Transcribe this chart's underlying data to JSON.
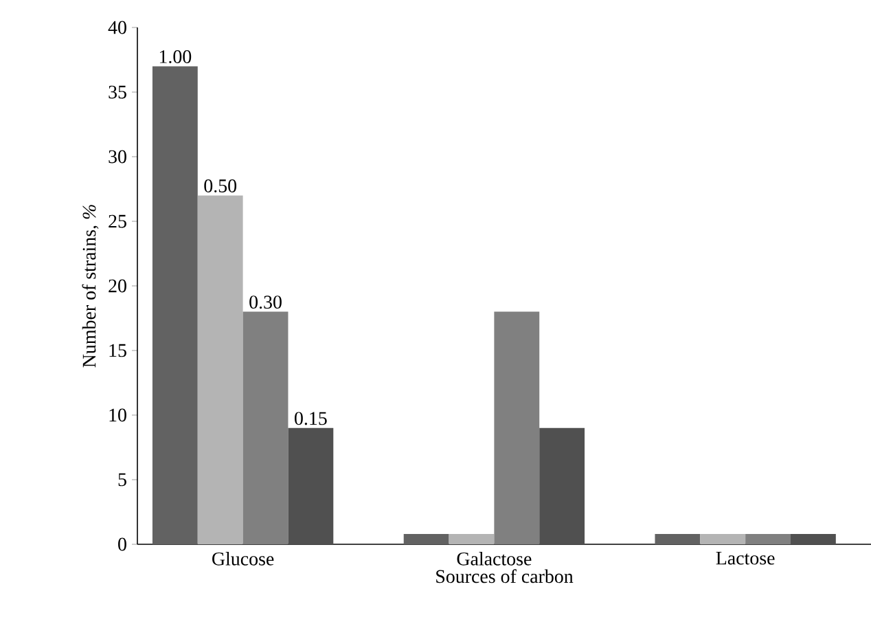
{
  "chart_data": {
    "type": "bar",
    "xlabel": "Sources of carbon",
    "ylabel": "Number of strains, *%*",
    "categories": [
      "Glucose",
      "Galactose",
      "Lactose"
    ],
    "series": [
      {
        "name": "1.00",
        "color": "#626262",
        "values": [
          37,
          0.8,
          0.8
        ]
      },
      {
        "name": "0.50",
        "color": "#b4b4b4",
        "values": [
          27,
          0.8,
          0.8
        ]
      },
      {
        "name": "0.30",
        "color": "#808080",
        "values": [
          18,
          18,
          0.8
        ]
      },
      {
        "name": "0.15",
        "color": "#505050",
        "values": [
          9,
          9,
          0.8
        ]
      }
    ],
    "ylim": [
      0,
      40
    ],
    "yticks": [
      0,
      5,
      10,
      15,
      20,
      25,
      30,
      35,
      40
    ],
    "grid": false
  }
}
